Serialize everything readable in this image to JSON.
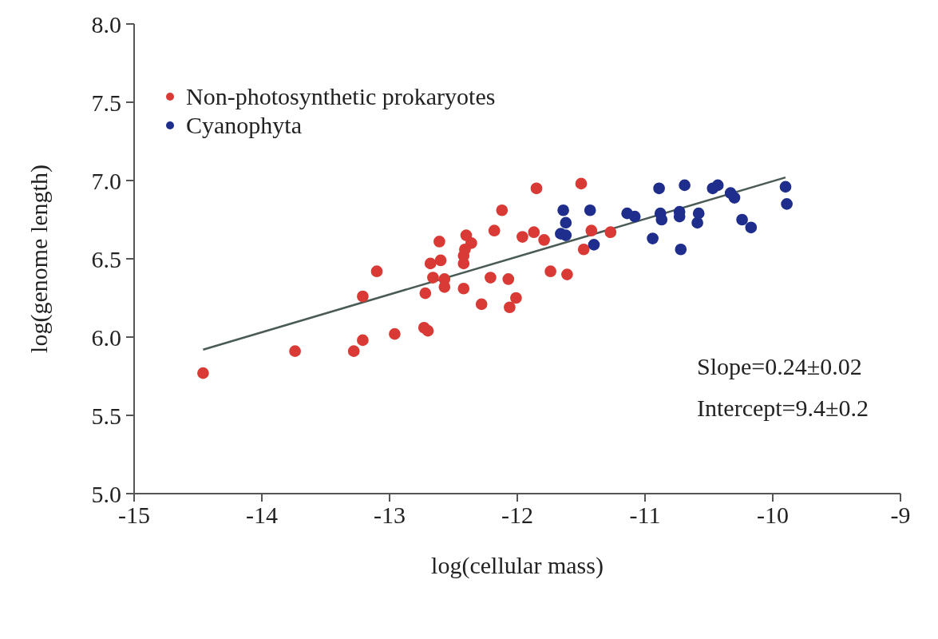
{
  "chart_data": {
    "type": "scatter",
    "xlabel": "log(cellular mass)",
    "ylabel": "log(genome length)",
    "xlim": [
      -15,
      -9
    ],
    "xticks": [
      -15,
      -14,
      -13,
      -12,
      -11,
      -10,
      -9
    ],
    "ylim": [
      5.0,
      8.0
    ],
    "yticks": [
      {
        "value": 5,
        "label": "5.0"
      },
      5.5,
      {
        "value": 6,
        "label": "6.0"
      },
      6.5,
      {
        "value": 7,
        "label": "7.0"
      },
      7.5,
      {
        "value": 8,
        "label": "8.0"
      }
    ],
    "grid": false,
    "legend": "top left",
    "annotations": [
      "Slope=0.24±0.02",
      "Intercept=9.4±0.2"
    ],
    "series": [
      {
        "name": "Non-photosynthetic prokaryotes",
        "color": "#d93a35",
        "marker": "circle",
        "x": [
          -14.46,
          -13.74,
          -13.28,
          -13.21,
          -13.21,
          -13.1,
          -12.96,
          -12.73,
          -12.7,
          -12.72,
          -12.66,
          -12.68,
          -12.6,
          -12.61,
          -12.57,
          -12.57,
          -12.42,
          -12.42,
          -12.42,
          -12.41,
          -12.4,
          -12.36,
          -12.28,
          -12.21,
          -12.18,
          -12.12,
          -12.07,
          -12.06,
          -12.01,
          -11.96,
          -11.87,
          -11.85,
          -11.79,
          -11.74,
          -11.61,
          -11.5,
          -11.48,
          -11.42,
          -11.27
        ],
        "values": [
          5.77,
          5.91,
          5.91,
          5.98,
          6.26,
          6.42,
          6.02,
          6.06,
          6.04,
          6.28,
          6.38,
          6.47,
          6.49,
          6.61,
          6.37,
          6.32,
          6.31,
          6.47,
          6.52,
          6.56,
          6.65,
          6.6,
          6.21,
          6.38,
          6.68,
          6.81,
          6.37,
          6.19,
          6.25,
          6.64,
          6.67,
          6.95,
          6.62,
          6.42,
          6.4,
          6.98,
          6.56,
          6.68,
          6.67
        ]
      },
      {
        "name": "Cyanophyta",
        "color": "#1f2e8c",
        "marker": "circle",
        "x": [
          -11.64,
          -11.62,
          -11.66,
          -11.62,
          -11.43,
          -11.4,
          -11.14,
          -11.08,
          -10.89,
          -10.94,
          -10.88,
          -10.87,
          -10.69,
          -10.73,
          -10.73,
          -10.72,
          -10.58,
          -10.59,
          -10.47,
          -10.43,
          -10.33,
          -10.3,
          -10.24,
          -10.17,
          -9.9,
          -9.89
        ],
        "values": [
          6.81,
          6.73,
          6.66,
          6.65,
          6.81,
          6.59,
          6.79,
          6.77,
          6.95,
          6.63,
          6.79,
          6.75,
          6.97,
          6.8,
          6.77,
          6.56,
          6.79,
          6.73,
          6.95,
          6.97,
          6.92,
          6.89,
          6.75,
          6.7,
          6.96,
          6.85
        ]
      },
      {
        "type": "line",
        "color": "#4a5a55",
        "x": [
          -14.46,
          -9.9
        ],
        "values": [
          5.92,
          7.02
        ]
      }
    ]
  }
}
